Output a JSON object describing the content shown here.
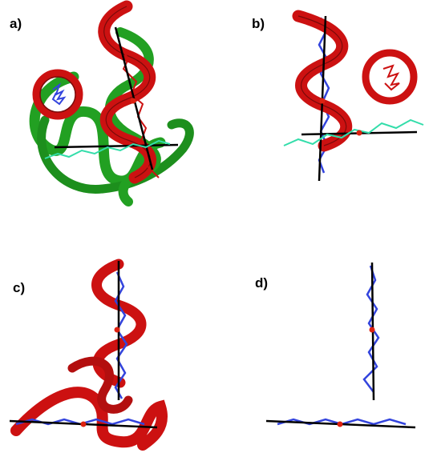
{
  "panels": [
    {
      "id": "a",
      "label": "a)"
    },
    {
      "id": "b",
      "label": "b)"
    },
    {
      "id": "c",
      "label": "c)"
    },
    {
      "id": "d",
      "label": "d)"
    }
  ],
  "colors": {
    "ribbon_red": "#cc1111",
    "ribbon_red_dark": "#7a0a0a",
    "ribbon_green": "#22a022",
    "ribbon_green_dark": "#0f5a0f",
    "trace_blue": "#3344dd",
    "trace_cyan": "#33ddaa",
    "axis": "#000000",
    "center_dot": "#dd2211"
  }
}
